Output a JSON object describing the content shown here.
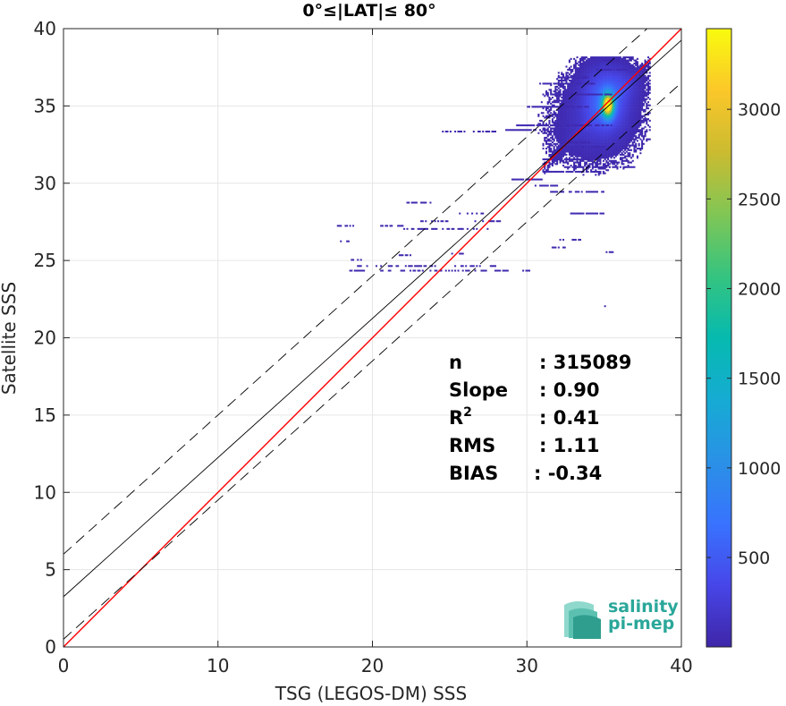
{
  "chart_data": {
    "type": "heatmap",
    "title": "0°≤|LAT|≤ 80°",
    "xlabel": "TSG (LEGOS-DM) SSS",
    "ylabel": "Satellite SSS",
    "xlim": [
      0,
      40
    ],
    "ylim": [
      0,
      40
    ],
    "xticks": [
      0,
      10,
      20,
      30,
      40
    ],
    "yticks": [
      0,
      5,
      10,
      15,
      20,
      25,
      30,
      35,
      40
    ],
    "grid": true,
    "colorbar": {
      "colormap": "parula",
      "range": [
        1,
        3450
      ],
      "ticks": [
        500,
        1000,
        1500,
        2000,
        2500,
        3000
      ]
    },
    "lines": [
      {
        "kind": "one-to-one",
        "color": "#ff0000",
        "slope": 1,
        "intercept": 0
      },
      {
        "kind": "regression",
        "color": "#000000",
        "slope": 0.9,
        "intercept": 3.25
      },
      {
        "kind": "confidence-upper",
        "color": "#000000",
        "style": "dashed",
        "slope": 0.9,
        "intercept": 6.0
      },
      {
        "kind": "confidence-lower",
        "color": "#000000",
        "style": "dashed",
        "slope": 0.9,
        "intercept": 0.5
      }
    ],
    "density": {
      "peak": [
        35.2,
        35.0
      ],
      "peak_value": 3400,
      "blobs": [
        {
          "cx": 35.2,
          "cy": 35.0,
          "sx": 0.25,
          "sy": 0.5,
          "v": 3400
        },
        {
          "cx": 35.0,
          "cy": 35.3,
          "sx": 0.9,
          "sy": 1.3,
          "v": 600
        },
        {
          "cx": 34.5,
          "cy": 34.3,
          "sx": 1.6,
          "sy": 1.6,
          "v": 120
        },
        {
          "cx": 36.2,
          "cy": 36.3,
          "sx": 0.7,
          "sy": 0.7,
          "v": 160
        },
        {
          "cx": 33.3,
          "cy": 33.0,
          "sx": 1.2,
          "sy": 1.0,
          "v": 40
        }
      ],
      "streaks": [
        {
          "x0": 29.3,
          "x1": 35.5,
          "y": 33.7
        },
        {
          "x0": 31.0,
          "x1": 35.5,
          "y": 35.7
        },
        {
          "x0": 30.8,
          "x1": 34.5,
          "y": 36.4
        },
        {
          "x0": 30.0,
          "x1": 34.0,
          "y": 34.9
        },
        {
          "x0": 32.3,
          "x1": 35.0,
          "y": 32.3
        },
        {
          "x0": 31.0,
          "x1": 35.0,
          "y": 30.7
        },
        {
          "x0": 31.5,
          "x1": 35.0,
          "y": 29.4
        },
        {
          "x0": 30.5,
          "x1": 32.0,
          "y": 29.8
        },
        {
          "x0": 29.0,
          "x1": 31.0,
          "y": 30.2
        },
        {
          "x0": 32.5,
          "x1": 37.0,
          "y": 31.0
        },
        {
          "x0": 32.8,
          "x1": 35.0,
          "y": 28.0
        },
        {
          "x0": 32.0,
          "x1": 34.0,
          "y": 36.8
        },
        {
          "x0": 28.6,
          "x1": 30.7,
          "y": 33.4
        },
        {
          "x0": 34.5,
          "x1": 36.5,
          "y": 37.3
        },
        {
          "x0": 34.8,
          "x1": 36.0,
          "y": 37.9
        },
        {
          "x0": 32.0,
          "x1": 34.2,
          "y": 32.6
        },
        {
          "x0": 31.0,
          "x1": 34.5,
          "y": 31.5
        }
      ],
      "sparse_segments": [
        {
          "x0": 24.5,
          "x1": 26.0,
          "y": 33.3
        },
        {
          "x0": 26.5,
          "x1": 28.0,
          "y": 33.3
        },
        {
          "x0": 22.0,
          "x1": 24.0,
          "y": 28.7
        },
        {
          "x0": 26.5,
          "x1": 28.5,
          "y": 27.5
        },
        {
          "x0": 25.5,
          "x1": 27.5,
          "y": 28.0
        },
        {
          "x0": 23.0,
          "x1": 25.0,
          "y": 27.5
        },
        {
          "x0": 17.5,
          "x1": 19.0,
          "y": 27.2
        },
        {
          "x0": 22.0,
          "x1": 27.5,
          "y": 27.0
        },
        {
          "x0": 20.5,
          "x1": 22.0,
          "y": 27.2
        },
        {
          "x0": 17.5,
          "x1": 18.5,
          "y": 26.2
        },
        {
          "x0": 21.5,
          "x1": 22.5,
          "y": 25.3
        },
        {
          "x0": 25.0,
          "x1": 26.0,
          "y": 25.4
        },
        {
          "x0": 18.5,
          "x1": 19.5,
          "y": 25.0
        },
        {
          "x0": 18.5,
          "x1": 30.5,
          "y": 24.3
        },
        {
          "x0": 19.0,
          "x1": 28.0,
          "y": 24.6
        },
        {
          "x0": 32.0,
          "x1": 33.5,
          "y": 26.3
        },
        {
          "x0": 35.0,
          "x1": 35.8,
          "y": 25.5
        },
        {
          "x0": 34.5,
          "x1": 35.2,
          "y": 22.0
        },
        {
          "x0": 31.5,
          "x1": 32.5,
          "y": 25.8
        }
      ]
    },
    "annotation": {
      "rows": [
        {
          "label": "n",
          "value": ": 315089"
        },
        {
          "label": "Slope",
          "value": ": 0.90"
        },
        {
          "label": "R",
          "superscript": "2",
          "value": ": 0.41"
        },
        {
          "label": "RMS",
          "value": ": 1.11"
        },
        {
          "label": "BIAS",
          "value": ": -0.34"
        }
      ]
    },
    "logo": {
      "line1": "salinity",
      "line2": "pi-mep",
      "colors": [
        "#2f9e8f",
        "#5cc0b0",
        "#8fd8cc"
      ]
    }
  }
}
